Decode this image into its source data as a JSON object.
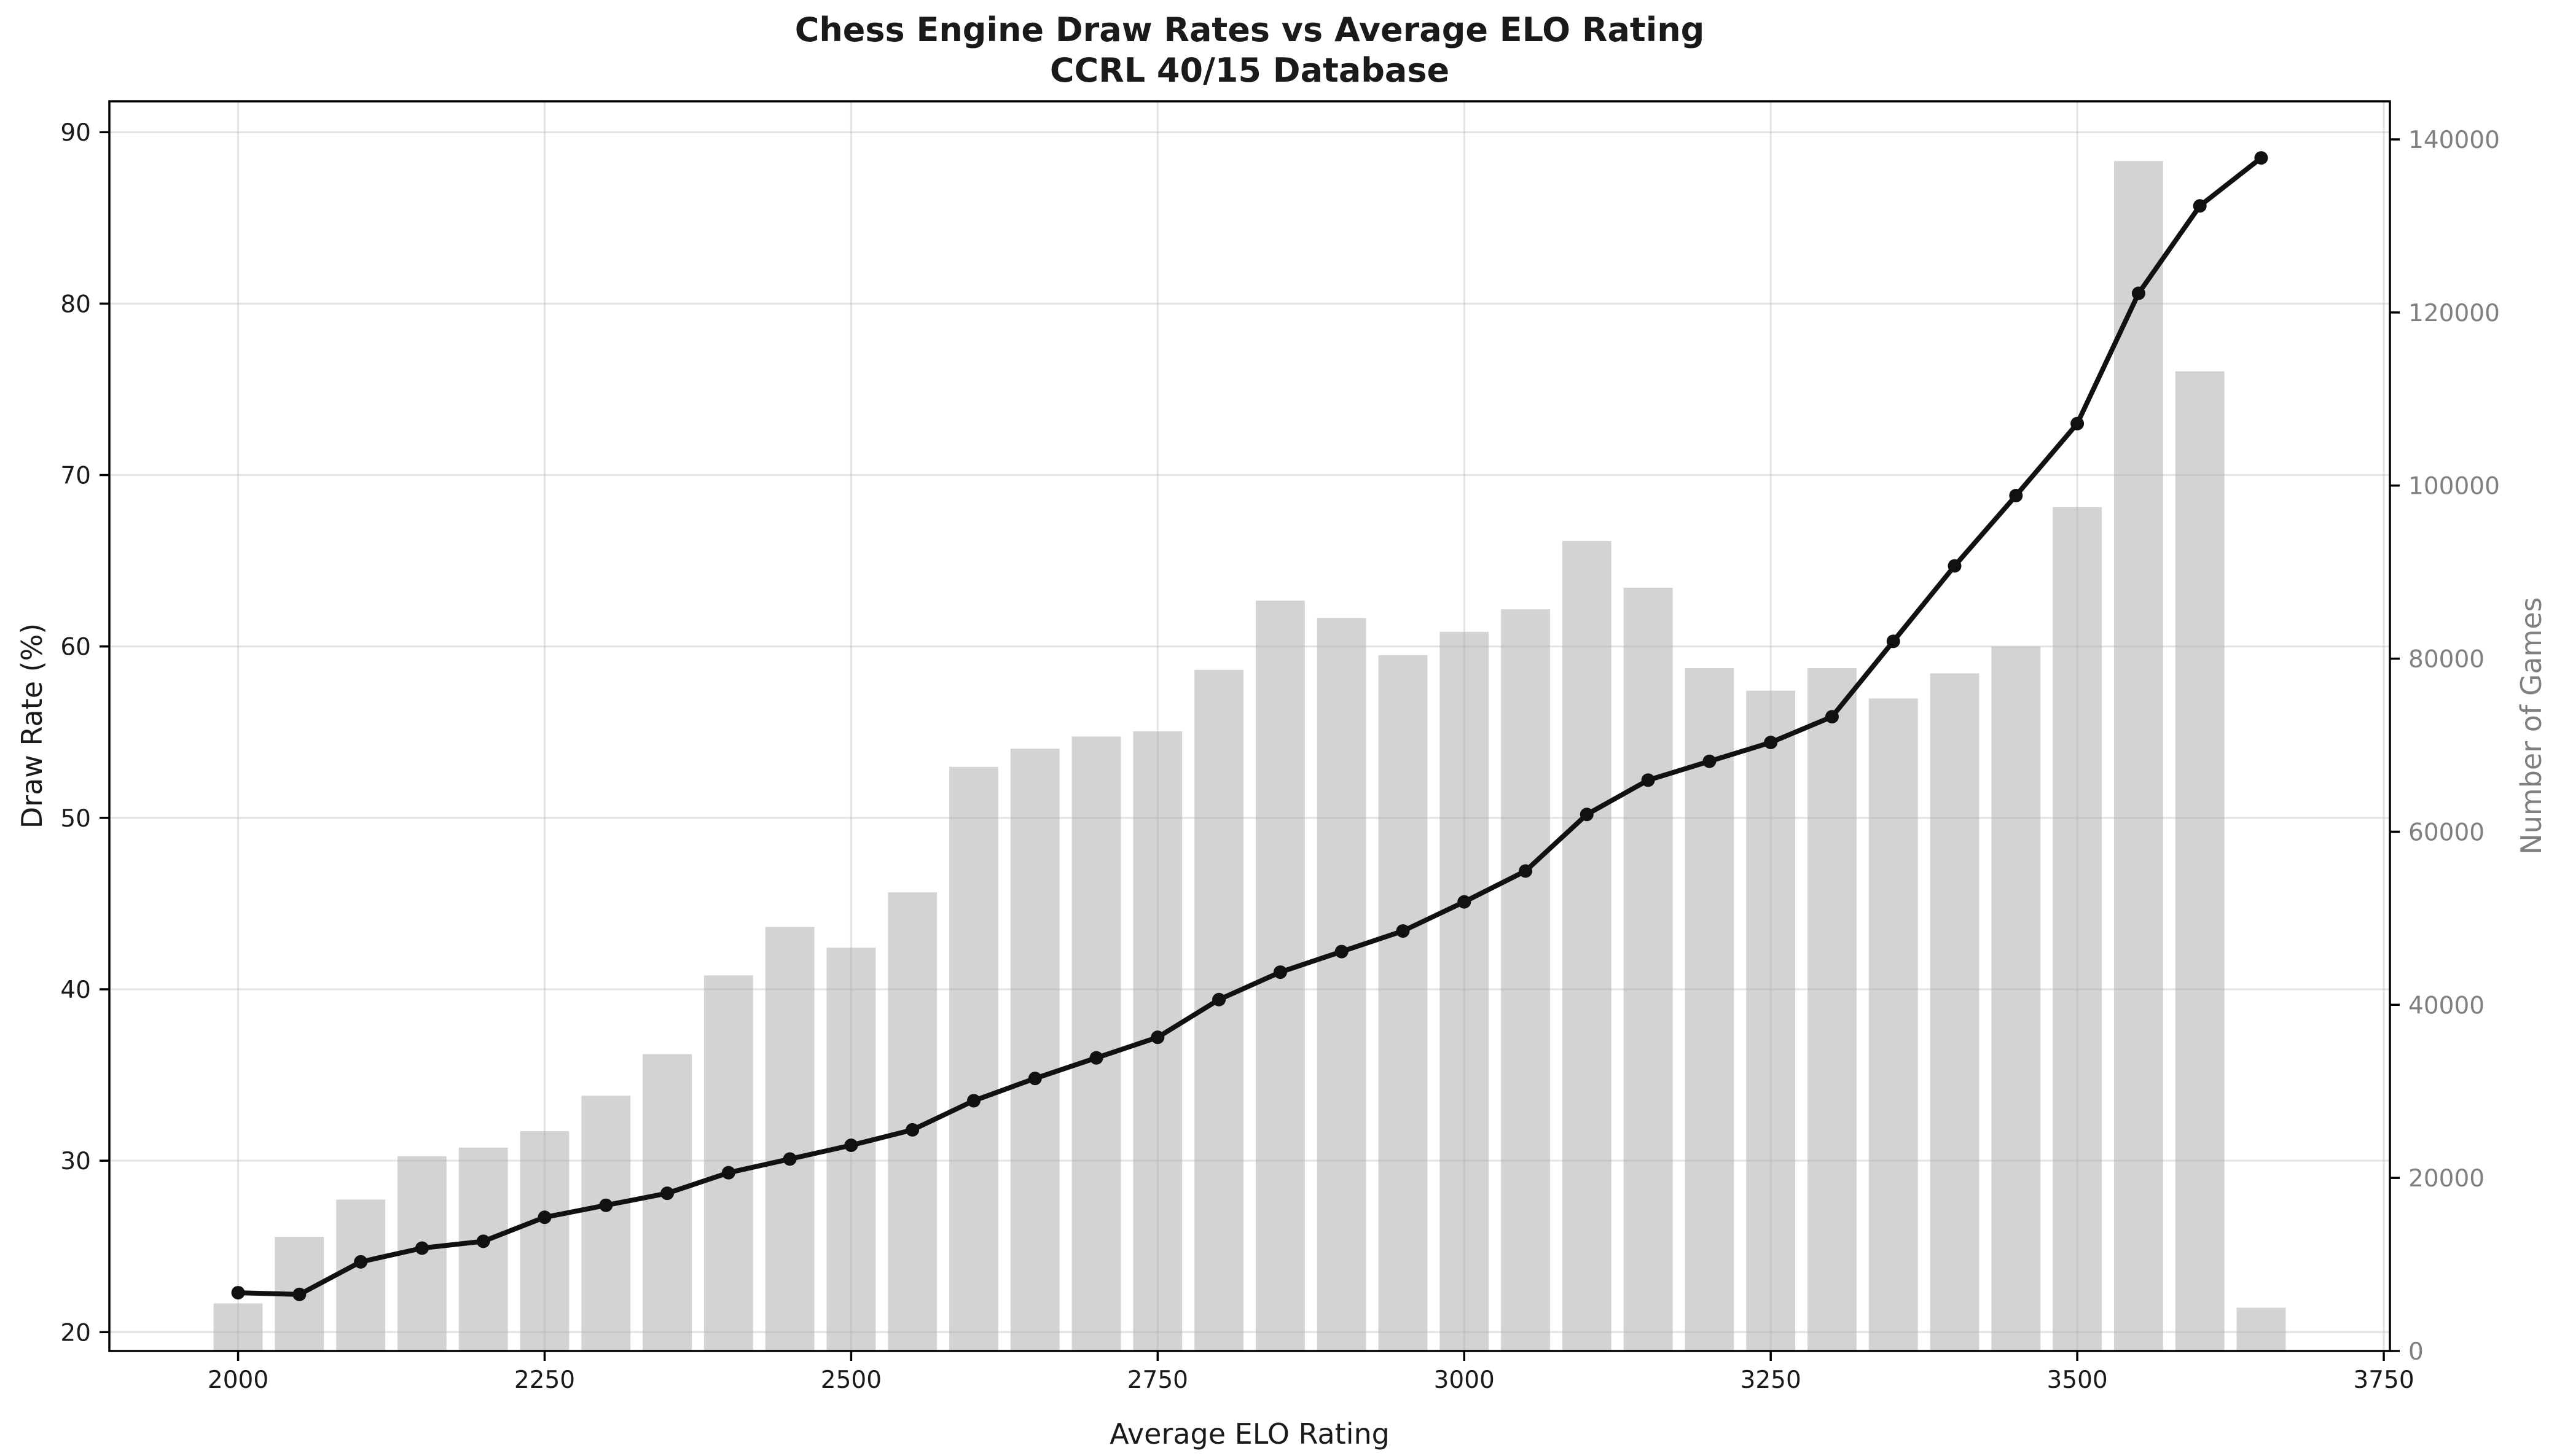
{
  "chart_data": {
    "type": "combo",
    "title": "Chess Engine Draw Rates vs Average ELO Rating",
    "subtitle": "CCRL 40/15 Database",
    "xlabel": "Average ELO Rating",
    "ylabel_left": "Draw Rate (%)",
    "ylabel_right": "Number of Games",
    "x": [
      2000,
      2050,
      2100,
      2150,
      2200,
      2250,
      2300,
      2350,
      2400,
      2450,
      2500,
      2550,
      2600,
      2650,
      2700,
      2750,
      2800,
      2850,
      2900,
      2950,
      3000,
      3050,
      3100,
      3150,
      3200,
      3250,
      3300,
      3350,
      3400,
      3450,
      3500,
      3550,
      3600,
      3650
    ],
    "series": [
      {
        "name": "Draw Rate (%)",
        "type": "line",
        "axis": "left",
        "values": [
          22.3,
          22.2,
          24.1,
          24.9,
          25.3,
          26.7,
          27.4,
          28.1,
          29.3,
          30.1,
          30.9,
          31.8,
          33.5,
          34.8,
          36.0,
          37.2,
          39.4,
          41.0,
          42.2,
          43.4,
          45.1,
          46.9,
          50.2,
          52.2,
          53.3,
          54.4,
          55.9,
          60.3,
          64.7,
          68.8,
          73.0,
          80.6,
          85.7,
          88.5
        ]
      },
      {
        "name": "Number of Games",
        "type": "bar",
        "axis": "right",
        "values": [
          5500,
          13200,
          17500,
          22500,
          23500,
          25400,
          29500,
          34300,
          43400,
          49000,
          46600,
          53000,
          67500,
          69600,
          71000,
          71600,
          78700,
          86700,
          84700,
          80400,
          83100,
          85700,
          93600,
          88200,
          78900,
          76300,
          78900,
          75400,
          78300,
          81400,
          97500,
          137500,
          113200,
          5000
        ]
      }
    ],
    "xlim": [
      1895,
      3755
    ],
    "ylim_left": [
      18.9,
      91.8
    ],
    "ylim_right": [
      0,
      144400
    ],
    "x_ticks": [
      2000,
      2250,
      2500,
      2750,
      3000,
      3250,
      3500,
      3750
    ],
    "y_left_ticks": [
      20,
      30,
      40,
      50,
      60,
      70,
      80,
      90
    ],
    "y_right_ticks": [
      0,
      20000,
      40000,
      60000,
      80000,
      100000,
      120000,
      140000
    ],
    "grid": true,
    "legend_position": "none",
    "bar_width_x_units": 40
  },
  "colors": {
    "background": "#ffffff",
    "bar": "#d3d3d3",
    "line": "#111111",
    "grid": "#b0b0b0",
    "spine": "#000000",
    "tick_label": "#1a1a1a",
    "right_axis_text": "#808080"
  }
}
